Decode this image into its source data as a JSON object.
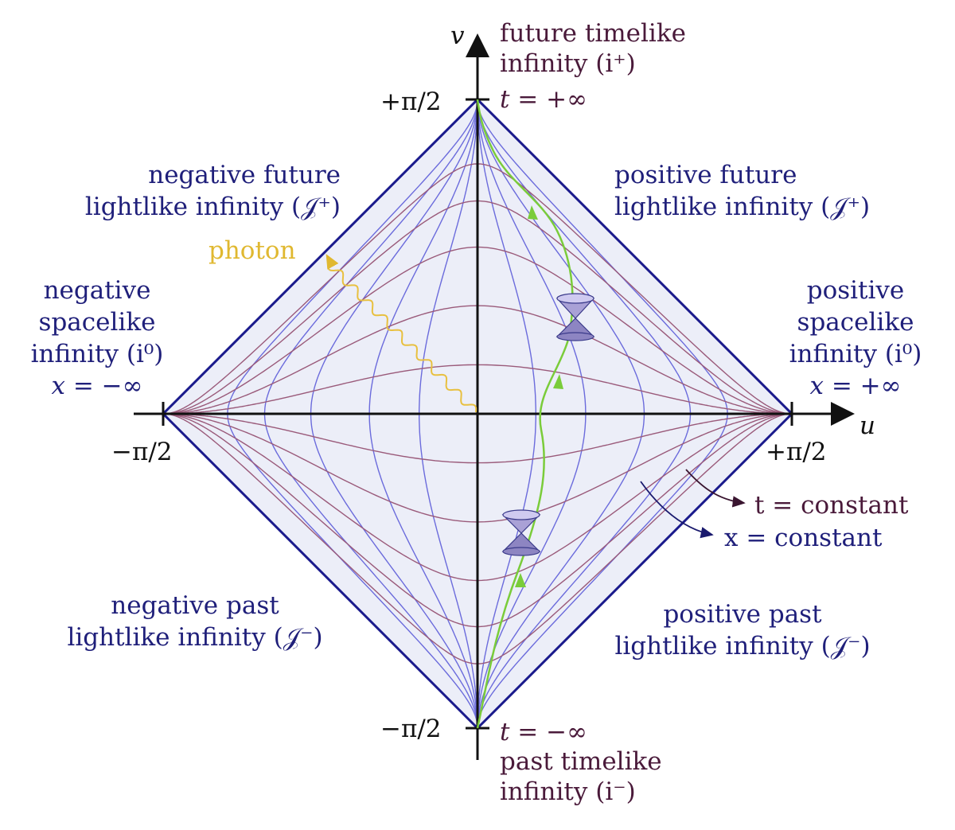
{
  "axes": {
    "v_label": "v",
    "u_label": "u",
    "v_top_tick": "+π/2",
    "v_bottom_tick": "−π/2",
    "u_left_tick": "−π/2",
    "u_right_tick": "+π/2"
  },
  "labels": {
    "future_timelike": [
      "future timelike",
      "infinity (i⁺)",
      "t = +∞"
    ],
    "past_timelike": [
      "t = −∞",
      "past timelike",
      "infinity (i⁻)"
    ],
    "neg_future_lightlike": [
      "negative future",
      "lightlike infinity (𝒥⁺)"
    ],
    "pos_future_lightlike": [
      "positive future",
      "lightlike infinity (𝒥⁺)"
    ],
    "neg_past_lightlike": [
      "negative past",
      "lightlike infinity (𝒥⁻)"
    ],
    "pos_past_lightlike": [
      "positive past",
      "lightlike infinity (𝒥⁻)"
    ],
    "neg_spacelike": [
      "negative",
      "spacelike",
      "infinity (i⁰)",
      "x = −∞"
    ],
    "pos_spacelike": [
      "positive",
      "spacelike",
      "infinity (i⁰)",
      "x = +∞"
    ],
    "photon": "photon",
    "t_constant": "t = constant",
    "x_constant": "x = constant"
  },
  "colors": {
    "boundary": "#1a1a8c",
    "fill": "#eceef8",
    "x_const_curves": "#6b6bdc",
    "t_const_curves": "#9a5a7a",
    "worldline": "#7acc3a",
    "photon": "#e8c040",
    "cone": "#9e96cc"
  }
}
